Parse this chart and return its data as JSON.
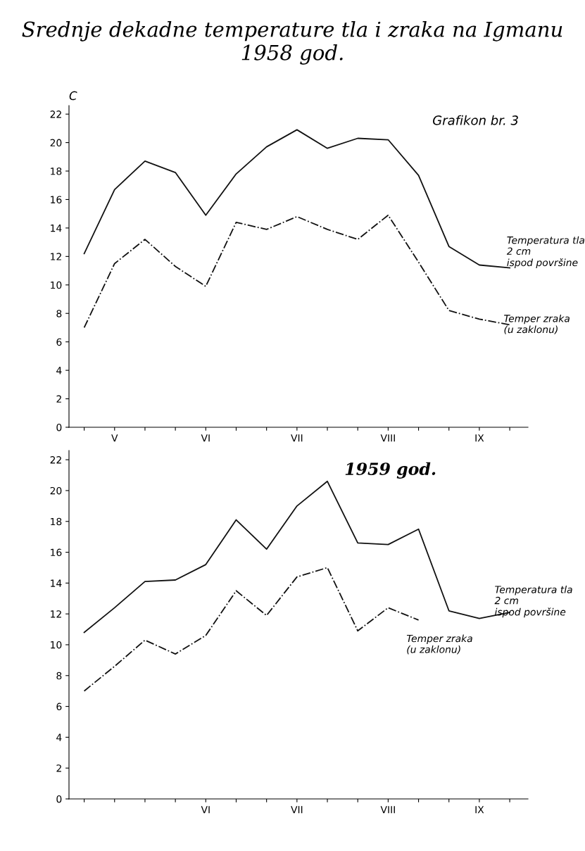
{
  "chart_data": [
    {
      "type": "line",
      "title": "Srednje dekadne temperature tla i zraka na Igmanu 1958 god.",
      "ylabel": "C",
      "annotations": [
        "Grafikon br. 3"
      ],
      "categories": [
        null,
        "V",
        null,
        null,
        "VI",
        null,
        null,
        "VII",
        null,
        null,
        "VIII",
        null,
        null,
        "IX",
        null
      ],
      "series": [
        {
          "name": "Temperatura tla 2 cm ispod površine",
          "color": "#111111",
          "line_style": "solid",
          "values": [
            12.2,
            16.7,
            18.7,
            17.9,
            14.9,
            17.8,
            19.7,
            20.9,
            19.6,
            20.3,
            20.2,
            17.7,
            12.7,
            11.4,
            11.2
          ]
        },
        {
          "name": "Temper zraka (u zaklonu)",
          "color": "#111111",
          "line_style": "dashdot",
          "values": [
            7.0,
            11.5,
            13.2,
            11.3,
            9.9,
            14.4,
            13.9,
            14.8,
            13.9,
            13.2,
            14.9,
            11.6,
            8.2,
            7.6,
            7.2
          ]
        }
      ],
      "ylim": [
        0,
        22.6
      ],
      "yticks": [
        0,
        2,
        4,
        6,
        8,
        10,
        12,
        14,
        16,
        18,
        20,
        22
      ],
      "grid": false,
      "legend": false,
      "marker": "none"
    },
    {
      "type": "line",
      "title": "1959 god.",
      "categories": [
        null,
        null,
        null,
        null,
        "VI",
        null,
        null,
        "VII",
        null,
        null,
        "VIII",
        null,
        null,
        "IX",
        null
      ],
      "series": [
        {
          "name": "Temperatura tla 2 cm ispod površine",
          "color": "#111111",
          "line_style": "solid",
          "values": [
            10.8,
            12.4,
            14.1,
            14.2,
            15.2,
            18.1,
            16.2,
            19.0,
            20.6,
            16.6,
            16.5,
            17.5,
            12.2,
            11.7,
            12.1
          ]
        },
        {
          "name": "Temper zraka (u zaklonu)",
          "color": "#111111",
          "line_style": "dashdot",
          "values": [
            7.0,
            8.6,
            10.3,
            9.4,
            10.6,
            13.5,
            11.9,
            14.4,
            15.0,
            10.9,
            12.4,
            11.6,
            null,
            null,
            null
          ]
        }
      ],
      "ylim": [
        0,
        22.6
      ],
      "yticks": [
        0,
        2,
        4,
        6,
        8,
        10,
        12,
        14,
        16,
        18,
        20,
        22
      ],
      "grid": false,
      "legend": false,
      "marker": "none"
    }
  ]
}
